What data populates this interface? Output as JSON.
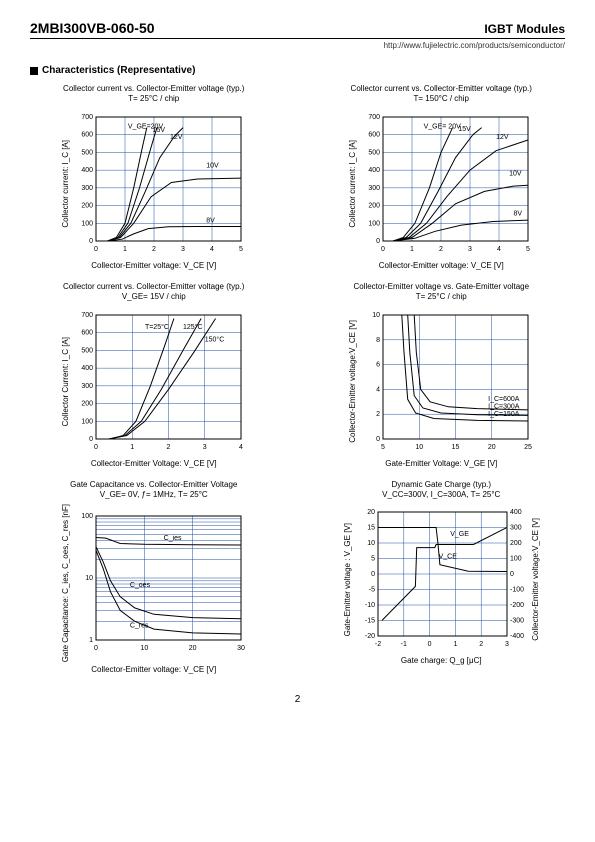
{
  "header": {
    "part_number": "2MBI300VB-060-50",
    "module_type": "IGBT Modules",
    "url": "http://www.fujielectric.com/products/semiconductor/"
  },
  "section_title": "Characteristics (Representative)",
  "page_number": "2",
  "charts": [
    {
      "title_line1": "Collector current vs. Collector-Emitter voltage (typ.)",
      "title_line2": "T= 25°C / chip",
      "xlabel": "Collector-Emitter voltage: V_CE [V]",
      "ylabel": "Collector current: I_C [A]",
      "xlim": [
        0,
        5
      ],
      "ylim": [
        0,
        700
      ],
      "xtick_step": 1,
      "ytick_step": 100,
      "grid_color": "#1f4ea0",
      "series_labels": [
        {
          "text": "V_GE=20V",
          "x": 1.1,
          "y": 635
        },
        {
          "text": "15V",
          "x": 1.95,
          "y": 615
        },
        {
          "text": "12V",
          "x": 2.55,
          "y": 575
        },
        {
          "text": "10V",
          "x": 3.8,
          "y": 415
        },
        {
          "text": "8V",
          "x": 3.8,
          "y": 105
        }
      ],
      "curves": [
        [
          [
            0.4,
            0
          ],
          [
            0.7,
            20
          ],
          [
            1.0,
            100
          ],
          [
            1.3,
            300
          ],
          [
            1.6,
            530
          ],
          [
            1.75,
            640
          ]
        ],
        [
          [
            0.4,
            0
          ],
          [
            0.75,
            20
          ],
          [
            1.1,
            100
          ],
          [
            1.5,
            300
          ],
          [
            1.9,
            530
          ],
          [
            2.1,
            640
          ]
        ],
        [
          [
            0.4,
            0
          ],
          [
            0.8,
            20
          ],
          [
            1.2,
            100
          ],
          [
            1.7,
            280
          ],
          [
            2.2,
            470
          ],
          [
            2.7,
            590
          ],
          [
            3.0,
            640
          ]
        ],
        [
          [
            0.4,
            0
          ],
          [
            0.85,
            20
          ],
          [
            1.3,
            100
          ],
          [
            1.9,
            250
          ],
          [
            2.6,
            330
          ],
          [
            3.5,
            350
          ],
          [
            5,
            355
          ]
        ],
        [
          [
            0.4,
            0
          ],
          [
            0.9,
            10
          ],
          [
            1.3,
            40
          ],
          [
            1.8,
            70
          ],
          [
            2.5,
            80
          ],
          [
            3.5,
            82
          ],
          [
            5,
            82
          ]
        ]
      ]
    },
    {
      "title_line1": "Collector current vs. Collector-Emitter voltage (typ.)",
      "title_line2": "T= 150°C / chip",
      "xlabel": "Collector-Emitter voltage: V_CE [V]",
      "ylabel": "Collector current: I_C [A]",
      "xlim": [
        0,
        5
      ],
      "ylim": [
        0,
        700
      ],
      "xtick_step": 1,
      "ytick_step": 100,
      "grid_color": "#1f4ea0",
      "series_labels": [
        {
          "text": "V_GE= 20V",
          "x": 1.4,
          "y": 635
        },
        {
          "text": "15V",
          "x": 2.6,
          "y": 620
        },
        {
          "text": "12V",
          "x": 3.9,
          "y": 575
        },
        {
          "text": "10V",
          "x": 4.35,
          "y": 370
        },
        {
          "text": "8V",
          "x": 4.5,
          "y": 145
        }
      ],
      "curves": [
        [
          [
            0.35,
            0
          ],
          [
            0.7,
            20
          ],
          [
            1.1,
            100
          ],
          [
            1.6,
            300
          ],
          [
            2.0,
            500
          ],
          [
            2.4,
            640
          ]
        ],
        [
          [
            0.35,
            0
          ],
          [
            0.8,
            20
          ],
          [
            1.3,
            100
          ],
          [
            1.9,
            280
          ],
          [
            2.5,
            470
          ],
          [
            3.1,
            600
          ],
          [
            3.4,
            640
          ]
        ],
        [
          [
            0.35,
            0
          ],
          [
            0.9,
            20
          ],
          [
            1.5,
            100
          ],
          [
            2.2,
            250
          ],
          [
            3.0,
            400
          ],
          [
            3.9,
            510
          ],
          [
            5,
            570
          ]
        ],
        [
          [
            0.35,
            0
          ],
          [
            1.0,
            20
          ],
          [
            1.7,
            100
          ],
          [
            2.5,
            210
          ],
          [
            3.5,
            280
          ],
          [
            4.5,
            310
          ],
          [
            5,
            315
          ]
        ],
        [
          [
            0.35,
            0
          ],
          [
            1.1,
            15
          ],
          [
            1.8,
            55
          ],
          [
            2.7,
            90
          ],
          [
            3.8,
            110
          ],
          [
            5,
            118
          ]
        ]
      ]
    },
    {
      "title_line1": "Collector current vs. Collector-Emitter voltage (typ.)",
      "title_line2": "V_GE= 15V / chip",
      "xlabel": "Collector-Emitter Voltage: V_CE [V]",
      "ylabel": "Collector Current: I_C [A]",
      "xlim": [
        0,
        4
      ],
      "ylim": [
        0,
        700
      ],
      "xtick_step": 1,
      "ytick_step": 100,
      "grid_color": "#1f4ea0",
      "series_labels": [
        {
          "text": "T=25°C",
          "x": 1.35,
          "y": 620
        },
        {
          "text": "125°C",
          "x": 2.4,
          "y": 620
        },
        {
          "text": "150°C",
          "x": 3.0,
          "y": 550
        }
      ],
      "curves": [
        [
          [
            0.4,
            0
          ],
          [
            0.75,
            20
          ],
          [
            1.1,
            100
          ],
          [
            1.5,
            300
          ],
          [
            1.9,
            530
          ],
          [
            2.15,
            680
          ]
        ],
        [
          [
            0.35,
            0
          ],
          [
            0.8,
            20
          ],
          [
            1.25,
            100
          ],
          [
            1.8,
            280
          ],
          [
            2.4,
            500
          ],
          [
            2.9,
            680
          ]
        ],
        [
          [
            0.35,
            0
          ],
          [
            0.85,
            20
          ],
          [
            1.35,
            100
          ],
          [
            2.0,
            280
          ],
          [
            2.7,
            490
          ],
          [
            3.3,
            680
          ]
        ]
      ]
    },
    {
      "title_line1": "Collector-Emitter voltage  vs. Gate-Emitter voltage",
      "title_line2": "T= 25°C / chip",
      "xlabel": "Gate-Emitter Voltage: V_GE [V]",
      "ylabel": "Collector-Emitter voltage:V_CE [V]",
      "xlim": [
        5,
        25
      ],
      "ylim": [
        0,
        10
      ],
      "xtick_step": 5,
      "ytick_step": 2,
      "grid_color": "#1f4ea0",
      "series_labels": [
        {
          "text": "I_C=600A",
          "x": 19.5,
          "y": 3.05
        },
        {
          "text": "I_C=300A",
          "x": 19.5,
          "y": 2.45
        },
        {
          "text": "I_C=150A",
          "x": 19.5,
          "y": 1.85
        }
      ],
      "curves": [
        [
          [
            9.3,
            10
          ],
          [
            9.6,
            7
          ],
          [
            10.2,
            4
          ],
          [
            11.5,
            3
          ],
          [
            14,
            2.6
          ],
          [
            18,
            2.45
          ],
          [
            25,
            2.35
          ]
        ],
        [
          [
            8.4,
            10
          ],
          [
            8.7,
            7
          ],
          [
            9.3,
            3.5
          ],
          [
            10.5,
            2.5
          ],
          [
            13,
            2.1
          ],
          [
            18,
            1.95
          ],
          [
            25,
            1.9
          ]
        ],
        [
          [
            7.6,
            10
          ],
          [
            7.9,
            7
          ],
          [
            8.4,
            3.2
          ],
          [
            9.5,
            2.1
          ],
          [
            12,
            1.65
          ],
          [
            18,
            1.5
          ],
          [
            25,
            1.45
          ]
        ]
      ]
    },
    {
      "title_line1": "Gate Capacitance vs. Collector-Emitter Voltage",
      "title_line2": "V_GE= 0V, ƒ= 1MHz, T= 25°C",
      "xlabel": "Collector-Emitter voltage: V_CE [V]",
      "ylabel": "Gate Capacitance: C_ies, C_oes, C_res [nF]",
      "xlim": [
        0,
        30
      ],
      "ylim": [
        1,
        100
      ],
      "yscale": "log",
      "xtick_step": 10,
      "grid_color": "#1f4ea0",
      "series_labels": [
        {
          "text": "C_ies",
          "x": 14,
          "y": 41
        },
        {
          "text": "C_oes",
          "x": 7,
          "y": 7.2
        },
        {
          "text": "C_res",
          "x": 7,
          "y": 1.6
        }
      ],
      "curves": [
        [
          [
            0,
            45
          ],
          [
            2,
            44
          ],
          [
            5,
            36
          ],
          [
            10,
            35
          ],
          [
            20,
            34.5
          ],
          [
            30,
            34
          ]
        ],
        [
          [
            0,
            32
          ],
          [
            1.5,
            18
          ],
          [
            3,
            9
          ],
          [
            5,
            5
          ],
          [
            8,
            3.3
          ],
          [
            12,
            2.6
          ],
          [
            20,
            2.3
          ],
          [
            30,
            2.2
          ]
        ],
        [
          [
            0,
            28
          ],
          [
            1.5,
            14
          ],
          [
            3,
            6
          ],
          [
            5,
            3
          ],
          [
            8,
            2
          ],
          [
            12,
            1.5
          ],
          [
            20,
            1.3
          ],
          [
            30,
            1.25
          ]
        ]
      ]
    },
    {
      "title_line1": "Dynamic Gate Charge (typ.)",
      "title_line2": "V_CC=300V, I_C=300A, T= 25°C",
      "xlabel": "Gate charge: Q_g [μC]",
      "ylabel": "Gate-Emitter voltage : V_GE [V]",
      "ylabel_right": "Collector-Emitter voltage:V_CE [V]",
      "xlim": [
        -2,
        3
      ],
      "ylim": [
        -20,
        20
      ],
      "ylim_right": [
        -400,
        400
      ],
      "xtick_step": 1,
      "ytick_step": 5,
      "ytick_step_right": 100,
      "grid_color": "#1f4ea0",
      "series_labels": [
        {
          "text": "V_GE",
          "x": 0.8,
          "y": 12.2
        },
        {
          "text": "V_CE",
          "x": 0.35,
          "y": 5
        }
      ],
      "curves": [
        [
          [
            -1.85,
            -15
          ],
          [
            -0.55,
            -4
          ],
          [
            -0.5,
            8.5
          ],
          [
            0.2,
            8.5
          ],
          [
            0.25,
            9.5
          ],
          [
            1.7,
            9.5
          ],
          [
            3,
            15
          ]
        ],
        [
          [
            -2,
            15
          ],
          [
            0.25,
            15
          ],
          [
            0.32,
            10
          ],
          [
            0.4,
            3
          ],
          [
            1.5,
            0.9
          ],
          [
            3,
            0.8
          ]
        ]
      ]
    }
  ]
}
